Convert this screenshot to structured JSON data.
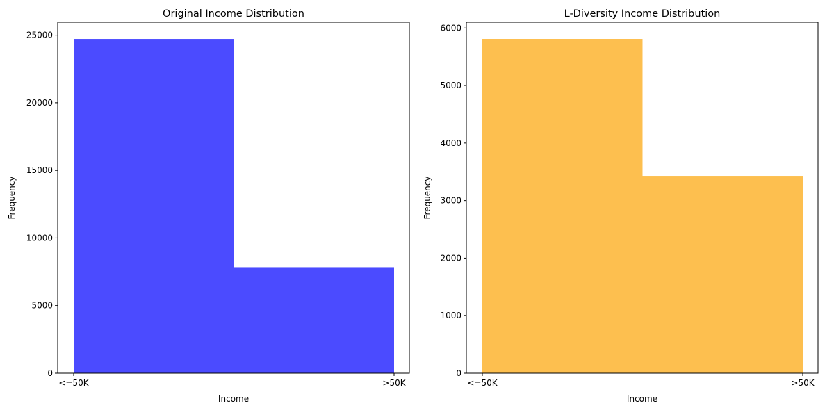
{
  "chart_data": [
    {
      "type": "bar",
      "title": "Original Income Distribution",
      "xlabel": "Income",
      "ylabel": "Frequency",
      "categories": [
        "<=50K",
        ">50K"
      ],
      "values": [
        24720,
        7841
      ],
      "ylim": [
        0,
        25956
      ],
      "yticks": [
        0,
        5000,
        10000,
        15000,
        20000,
        25000
      ],
      "ytick_labels": [
        "0",
        "5000",
        "10000",
        "15000",
        "20000",
        "25000"
      ],
      "color": "#4b4bff",
      "grid": false
    },
    {
      "type": "bar",
      "title": "L-Diversity Income Distribution",
      "xlabel": "Income",
      "ylabel": "Frequency",
      "categories": [
        "<=50K",
        ">50K"
      ],
      "values": [
        5810,
        3430
      ],
      "ylim": [
        0,
        6100
      ],
      "yticks": [
        0,
        1000,
        2000,
        3000,
        4000,
        5000,
        6000
      ],
      "ytick_labels": [
        "0",
        "1000",
        "2000",
        "3000",
        "4000",
        "5000",
        "6000"
      ],
      "color": "#fdbf4f",
      "grid": false
    }
  ]
}
